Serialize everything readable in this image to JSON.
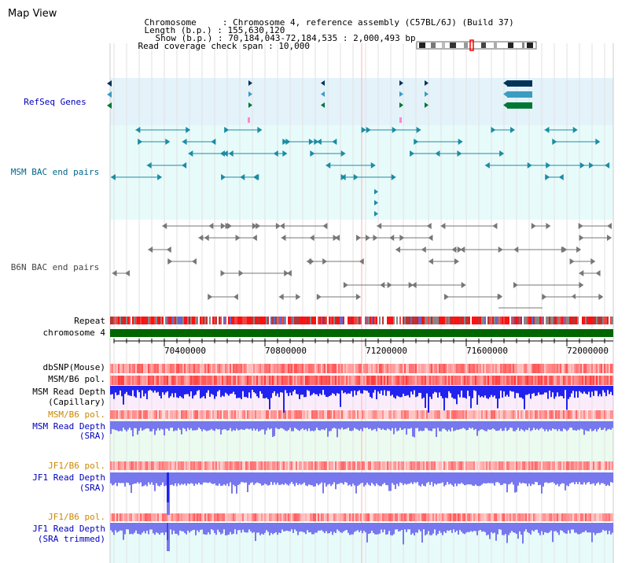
{
  "app": {
    "title": "Map View"
  },
  "header": {
    "chromosome_label": "Chromosome     : ",
    "chromosome_value": "Chromosome 4, reference assembly (C57BL/6J) (Build 37)",
    "length_label": "Length (b.p.) : ",
    "length_value": "155,630,120",
    "show_label": "Show (b.p.) : ",
    "show_value": "70,184,043-72,184,535 : 2,000,493 bp",
    "coverage_label": "Read coverage check span : ",
    "coverage_value": "10,000"
  },
  "tracks": {
    "refseq": "RefSeq Genes",
    "msm_bac": "MSM BAC end pairs",
    "b6n_bac": "B6N BAC end pairs",
    "repeat": "Repeat",
    "chromosome": "chromosome 4",
    "dbsnp": "dbSNP(Mouse)",
    "msm_b6_pol": "MSM/B6 pol.",
    "msm_depth_cap_1": "MSM Read Depth",
    "msm_depth_cap_2": "(Capillary)",
    "msm_b6_pol_2": "MSM/B6 pol.",
    "msm_depth_sra_1": "MSM Read Depth",
    "msm_depth_sra_2": "(SRA)",
    "jf1_b6_pol": "JF1/B6 pol.",
    "jf1_depth_sra_1": "JF1 Read Depth",
    "jf1_depth_sra_2": "(SRA)",
    "jf1_b6_pol_2": "JF1/B6 pol.",
    "jf1_depth_trim_1": "JF1 Read Depth",
    "jf1_depth_trim_2": "(SRA trimmed)"
  },
  "ruler": {
    "ticks": [
      "70400000",
      "70800000",
      "71200000",
      "71600000",
      "72000000"
    ]
  },
  "colors": {
    "refseq_band": "#e4f2fa",
    "msm_band": "#e8fbfb",
    "repeat_red": "#ee2222",
    "chromosome_green": "#006600",
    "depth_blue": "#2222ee",
    "depth_light_blue": "#7777ee",
    "depth_bg": "#fbecfb",
    "sra_bg": "#ecfbf0",
    "trim_bg": "#e8fbfb"
  }
}
